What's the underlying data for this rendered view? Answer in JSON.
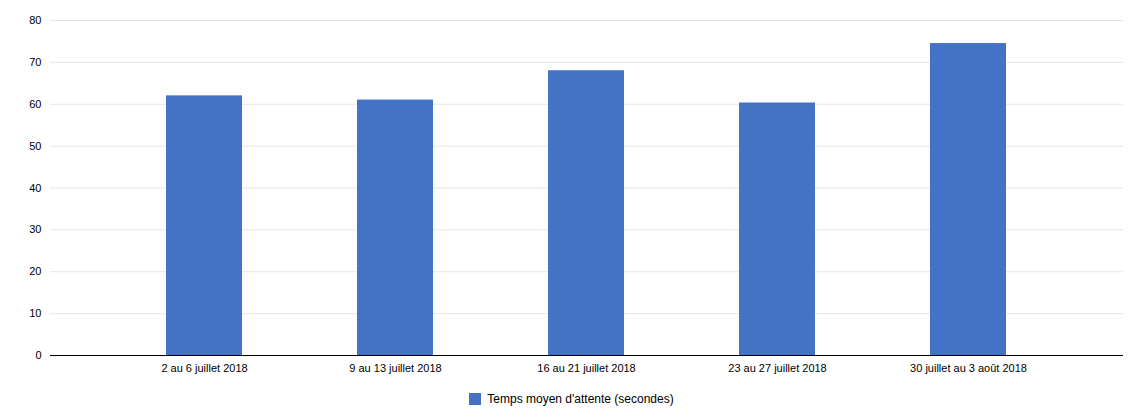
{
  "chart_data": {
    "type": "bar",
    "categories": [
      "2 au 6 juillet 2018",
      "9 au 13 juillet 2018",
      "16 au 21 juillet 2018",
      "23 au 27 juillet 2018",
      "30 juillet au 3 août 2018"
    ],
    "series": [
      {
        "name": "Temps moyen d'attente (secondes)",
        "color": "#4472C4",
        "values": [
          62,
          61,
          68,
          60.3,
          74.5
        ]
      }
    ],
    "ylim": [
      0,
      80
    ],
    "yticks": [
      0,
      10,
      20,
      30,
      40,
      50,
      60,
      70,
      80
    ],
    "grid": true,
    "legend": "bottom"
  }
}
